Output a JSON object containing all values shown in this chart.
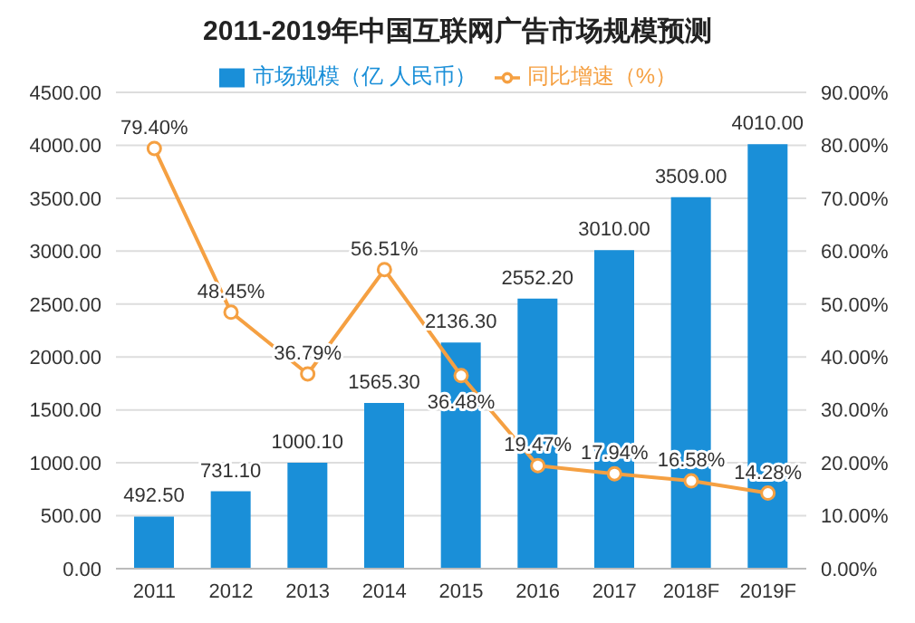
{
  "chart_data": {
    "type": "bar",
    "title": "2011-2019年中国互联网广告市场规模预测",
    "categories": [
      "2011",
      "2012",
      "2013",
      "2014",
      "2015",
      "2016",
      "2017",
      "2018F",
      "2019F"
    ],
    "series": [
      {
        "name": "市场规模（亿 人民币）",
        "color": "#1a8fd8",
        "values": [
          492.5,
          731.1,
          1000.1,
          1565.3,
          2136.3,
          2552.2,
          3010,
          3509,
          4010
        ],
        "value_labels": [
          "492.50",
          "731.10",
          "1000.10",
          "1565.30",
          "2136.30",
          "2552.20",
          "3010.00",
          "3509.00",
          "4010.00"
        ]
      },
      {
        "name": "同比增速（%）",
        "type": "line",
        "axis": "y2",
        "color": "#f5a042",
        "marker": "circle",
        "values": [
          79.4,
          48.45,
          36.79,
          56.51,
          36.48,
          19.47,
          17.94,
          16.58,
          14.28
        ],
        "value_labels": [
          "79.40%",
          "48.45%",
          "36.79%",
          "56.51%",
          "36.48%",
          "19.47%",
          "17.94%",
          "16.58%",
          "14.28%"
        ]
      }
    ],
    "ylim": [
      0,
      4500
    ],
    "yticks": [
      {
        "value": 0,
        "label": "0.00"
      },
      {
        "value": 500,
        "label": "500.00"
      },
      {
        "value": 1000,
        "label": "1000.00"
      },
      {
        "value": 1500,
        "label": "1500.00"
      },
      {
        "value": 2000,
        "label": "2000.00"
      },
      {
        "value": 2500,
        "label": "2500.00"
      },
      {
        "value": 3000,
        "label": "3000.00"
      },
      {
        "value": 3500,
        "label": "3500.00"
      },
      {
        "value": 4000,
        "label": "4000.00"
      },
      {
        "value": 4500,
        "label": "4500.00"
      }
    ],
    "y2lim": [
      0,
      90
    ],
    "y2ticks": [
      {
        "value": 0,
        "label": "0.00%"
      },
      {
        "value": 10,
        "label": "10.00%"
      },
      {
        "value": 20,
        "label": "20.00%"
      },
      {
        "value": 30,
        "label": "30.00%"
      },
      {
        "value": 40,
        "label": "40.00%"
      },
      {
        "value": 50,
        "label": "50.00%"
      },
      {
        "value": 60,
        "label": "60.00%"
      },
      {
        "value": 70,
        "label": "70.00%"
      },
      {
        "value": 80,
        "label": "80.00%"
      },
      {
        "value": 90,
        "label": "90.00%"
      }
    ],
    "grid": "y",
    "legend": "top"
  }
}
